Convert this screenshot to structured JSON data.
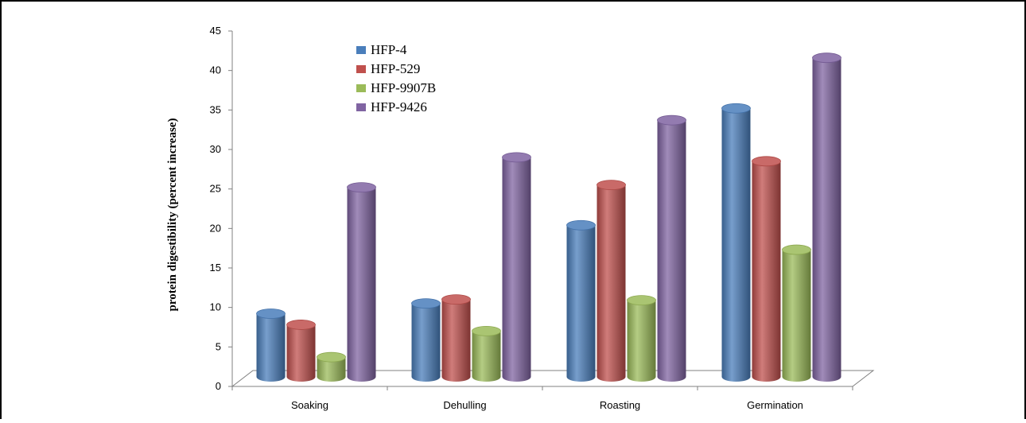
{
  "chart_data": {
    "type": "bar",
    "title": "",
    "xlabel": "",
    "ylabel": "protein digestibility (percent increase)",
    "ylim": [
      0,
      45
    ],
    "yticks": [
      0,
      5,
      10,
      15,
      20,
      25,
      30,
      35,
      40,
      45
    ],
    "categories": [
      "Soaking",
      "Dehulling",
      "Roasting",
      "Germination"
    ],
    "legend_position": "top-left",
    "grid": false,
    "style": "3d-cylinder",
    "series": [
      {
        "name": "HFP-4",
        "color": "#4a7ebb",
        "values": [
          8.0,
          9.3,
          19.2,
          34.0
        ]
      },
      {
        "name": "HFP-529",
        "color": "#c0504d",
        "values": [
          6.6,
          9.8,
          24.3,
          27.3
        ]
      },
      {
        "name": "HFP-9907B",
        "color": "#9bbb59",
        "values": [
          2.5,
          5.8,
          9.7,
          16.1
        ]
      },
      {
        "name": "HFP-9426",
        "color": "#8064a2",
        "values": [
          24.0,
          27.8,
          32.5,
          40.4
        ]
      }
    ]
  }
}
